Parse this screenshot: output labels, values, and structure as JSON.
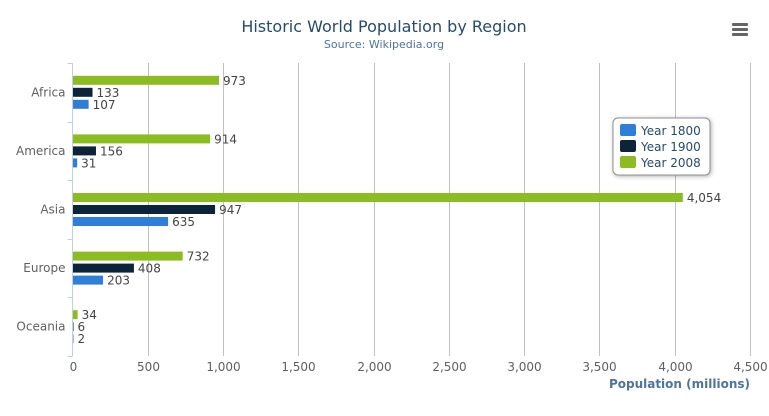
{
  "chart_data": {
    "type": "bar",
    "orientation": "horizontal",
    "title": "Historic World Population by Region",
    "subtitle": "Source: Wikipedia.org",
    "xlabel": "",
    "ylabel": "Population (millions)",
    "categories": [
      "Africa",
      "America",
      "Asia",
      "Europe",
      "Oceania"
    ],
    "series": [
      {
        "name": "Year 1800",
        "color": "#2f7ed8",
        "values": [
          107,
          31,
          635,
          203,
          2
        ]
      },
      {
        "name": "Year 1900",
        "color": "#0d233a",
        "values": [
          133,
          156,
          947,
          408,
          6
        ]
      },
      {
        "name": "Year 2008",
        "color": "#8bbc21",
        "values": [
          973,
          914,
          4054,
          732,
          34
        ]
      }
    ],
    "value_axis": {
      "min": 0,
      "max": 4500,
      "ticks": [
        0,
        500,
        1000,
        1500,
        2000,
        2500,
        3000,
        3500,
        4000,
        4500
      ],
      "tick_labels": [
        "0",
        "500",
        "1,000",
        "1,500",
        "2,000",
        "2,500",
        "3,000",
        "3,500",
        "4,000",
        "4,500"
      ]
    },
    "grid": true,
    "legend": "right",
    "data_labels": true
  },
  "menu_icon": "hamburger-menu-icon"
}
